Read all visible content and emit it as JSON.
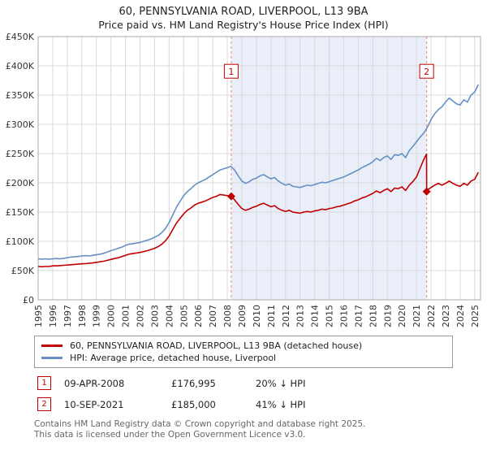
{
  "title": "60, PENNSYLVANIA ROAD, LIVERPOOL, L13 9BA",
  "subtitle": "Price paid vs. HM Land Registry's House Price Index (HPI)",
  "chart_data": {
    "type": "line",
    "x_range": [
      1995,
      2025.4
    ],
    "y_range": [
      0,
      450000
    ],
    "y_ticks": [
      0,
      50000,
      100000,
      150000,
      200000,
      250000,
      300000,
      350000,
      400000,
      450000
    ],
    "y_tick_labels": [
      "£0",
      "£50K",
      "£100K",
      "£150K",
      "£200K",
      "£250K",
      "£300K",
      "£350K",
      "£400K",
      "£450K"
    ],
    "x_ticks": [
      1995,
      1996,
      1997,
      1998,
      1999,
      2000,
      2001,
      2002,
      2003,
      2004,
      2005,
      2006,
      2007,
      2008,
      2009,
      2010,
      2011,
      2012,
      2013,
      2014,
      2015,
      2016,
      2017,
      2018,
      2019,
      2020,
      2021,
      2022,
      2023,
      2024,
      2025
    ],
    "grid": true,
    "grid_color": "#d9d9d9",
    "border_color": "#aaaaaa",
    "shaded_region": {
      "from": 2008.27,
      "to": 2021.69,
      "color": "#e9eef8"
    },
    "marker_line_color": "#e08a8a",
    "marker_label_y": 390000,
    "series": [
      {
        "name": "60, PENNSYLVANIA ROAD, LIVERPOOL, L13 9BA (detached house)",
        "color": "#c00000",
        "points": [
          [
            1995,
            57000
          ],
          [
            1995.25,
            56500
          ],
          [
            1995.5,
            57000
          ],
          [
            1995.75,
            57000
          ],
          [
            1996,
            58000
          ],
          [
            1996.25,
            58000
          ],
          [
            1996.5,
            58500
          ],
          [
            1996.75,
            59000
          ],
          [
            1997,
            59500
          ],
          [
            1997.25,
            60000
          ],
          [
            1997.5,
            60500
          ],
          [
            1997.75,
            61000
          ],
          [
            1998,
            61500
          ],
          [
            1998.25,
            62000
          ],
          [
            1998.5,
            62500
          ],
          [
            1998.75,
            63000
          ],
          [
            1999,
            64000
          ],
          [
            1999.25,
            65000
          ],
          [
            1999.5,
            66000
          ],
          [
            1999.75,
            67500
          ],
          [
            2000,
            69000
          ],
          [
            2000.25,
            70500
          ],
          [
            2000.5,
            72000
          ],
          [
            2000.75,
            74000
          ],
          [
            2001,
            76000
          ],
          [
            2001.25,
            78000
          ],
          [
            2001.5,
            79000
          ],
          [
            2001.75,
            80000
          ],
          [
            2002,
            81000
          ],
          [
            2002.25,
            82500
          ],
          [
            2002.5,
            84000
          ],
          [
            2002.75,
            86000
          ],
          [
            2003,
            88000
          ],
          [
            2003.25,
            91000
          ],
          [
            2003.5,
            95000
          ],
          [
            2003.75,
            101000
          ],
          [
            2004,
            109000
          ],
          [
            2004.25,
            120000
          ],
          [
            2004.5,
            131000
          ],
          [
            2004.75,
            139000
          ],
          [
            2005,
            147000
          ],
          [
            2005.25,
            153000
          ],
          [
            2005.5,
            157000
          ],
          [
            2005.75,
            162000
          ],
          [
            2006,
            165000
          ],
          [
            2006.25,
            167000
          ],
          [
            2006.5,
            169000
          ],
          [
            2006.75,
            172000
          ],
          [
            2007,
            175000
          ],
          [
            2007.25,
            177000
          ],
          [
            2007.5,
            180000
          ],
          [
            2007.75,
            179000
          ],
          [
            2008,
            178000
          ],
          [
            2008.27,
            176995
          ],
          [
            2008.5,
            171000
          ],
          [
            2008.75,
            163000
          ],
          [
            2009,
            156000
          ],
          [
            2009.25,
            153000
          ],
          [
            2009.5,
            155000
          ],
          [
            2009.75,
            158000
          ],
          [
            2010,
            160000
          ],
          [
            2010.25,
            163000
          ],
          [
            2010.5,
            165000
          ],
          [
            2010.75,
            162000
          ],
          [
            2011,
            159000
          ],
          [
            2011.25,
            161000
          ],
          [
            2011.5,
            156000
          ],
          [
            2011.75,
            153000
          ],
          [
            2012,
            151000
          ],
          [
            2012.25,
            153000
          ],
          [
            2012.5,
            150000
          ],
          [
            2012.75,
            149000
          ],
          [
            2013,
            148000
          ],
          [
            2013.25,
            150000
          ],
          [
            2013.5,
            151000
          ],
          [
            2013.75,
            150000
          ],
          [
            2014,
            152000
          ],
          [
            2014.25,
            153000
          ],
          [
            2014.5,
            155000
          ],
          [
            2014.75,
            154000
          ],
          [
            2015,
            156000
          ],
          [
            2015.25,
            157000
          ],
          [
            2015.5,
            159000
          ],
          [
            2015.75,
            160000
          ],
          [
            2016,
            162000
          ],
          [
            2016.25,
            164000
          ],
          [
            2016.5,
            166000
          ],
          [
            2016.75,
            169000
          ],
          [
            2017,
            171000
          ],
          [
            2017.25,
            174000
          ],
          [
            2017.5,
            176000
          ],
          [
            2017.75,
            179000
          ],
          [
            2018,
            182000
          ],
          [
            2018.25,
            186000
          ],
          [
            2018.5,
            183000
          ],
          [
            2018.75,
            187000
          ],
          [
            2019,
            190000
          ],
          [
            2019.25,
            185000
          ],
          [
            2019.5,
            191000
          ],
          [
            2019.75,
            190000
          ],
          [
            2020,
            193000
          ],
          [
            2020.25,
            187000
          ],
          [
            2020.5,
            196000
          ],
          [
            2020.75,
            202000
          ],
          [
            2021,
            210000
          ],
          [
            2021.25,
            225000
          ],
          [
            2021.5,
            240000
          ],
          [
            2021.69,
            249000
          ],
          [
            2021.7,
            185000
          ],
          [
            2021.75,
            188000
          ],
          [
            2022,
            192000
          ],
          [
            2022.25,
            196000
          ],
          [
            2022.5,
            199000
          ],
          [
            2022.75,
            196000
          ],
          [
            2023,
            199000
          ],
          [
            2023.25,
            203000
          ],
          [
            2023.5,
            199000
          ],
          [
            2023.75,
            196000
          ],
          [
            2024,
            194000
          ],
          [
            2024.25,
            199000
          ],
          [
            2024.5,
            196000
          ],
          [
            2024.75,
            203000
          ],
          [
            2025,
            206000
          ],
          [
            2025.25,
            218000
          ]
        ]
      },
      {
        "name": "HPI: Average price, detached house, Liverpool",
        "color": "#6690c4",
        "points": [
          [
            1995,
            70000
          ],
          [
            1995.25,
            69500
          ],
          [
            1995.5,
            70000
          ],
          [
            1995.75,
            69500
          ],
          [
            1996,
            70000
          ],
          [
            1996.25,
            70500
          ],
          [
            1996.5,
            70000
          ],
          [
            1996.75,
            71000
          ],
          [
            1997,
            72000
          ],
          [
            1997.25,
            73000
          ],
          [
            1997.5,
            73500
          ],
          [
            1997.75,
            74000
          ],
          [
            1998,
            75000
          ],
          [
            1998.25,
            75500
          ],
          [
            1998.5,
            75000
          ],
          [
            1998.75,
            76000
          ],
          [
            1999,
            77000
          ],
          [
            1999.25,
            78000
          ],
          [
            1999.5,
            79500
          ],
          [
            1999.75,
            81500
          ],
          [
            2000,
            84000
          ],
          [
            2000.25,
            86000
          ],
          [
            2000.5,
            88000
          ],
          [
            2000.75,
            90000
          ],
          [
            2001,
            93000
          ],
          [
            2001.25,
            95000
          ],
          [
            2001.5,
            96000
          ],
          [
            2001.75,
            97000
          ],
          [
            2002,
            98000
          ],
          [
            2002.25,
            100000
          ],
          [
            2002.5,
            102000
          ],
          [
            2002.75,
            104000
          ],
          [
            2003,
            107000
          ],
          [
            2003.25,
            110000
          ],
          [
            2003.5,
            115000
          ],
          [
            2003.75,
            122000
          ],
          [
            2004,
            132000
          ],
          [
            2004.25,
            145000
          ],
          [
            2004.5,
            158000
          ],
          [
            2004.75,
            168000
          ],
          [
            2005,
            178000
          ],
          [
            2005.25,
            185000
          ],
          [
            2005.5,
            190000
          ],
          [
            2005.75,
            196000
          ],
          [
            2006,
            200000
          ],
          [
            2006.25,
            203000
          ],
          [
            2006.5,
            206000
          ],
          [
            2006.75,
            210000
          ],
          [
            2007,
            214000
          ],
          [
            2007.25,
            218000
          ],
          [
            2007.5,
            222000
          ],
          [
            2007.75,
            224000
          ],
          [
            2008,
            226000
          ],
          [
            2008.25,
            228000
          ],
          [
            2008.5,
            222000
          ],
          [
            2008.75,
            212000
          ],
          [
            2009,
            203000
          ],
          [
            2009.25,
            199000
          ],
          [
            2009.5,
            202000
          ],
          [
            2009.75,
            206000
          ],
          [
            2010,
            208000
          ],
          [
            2010.25,
            212000
          ],
          [
            2010.5,
            214000
          ],
          [
            2010.75,
            210000
          ],
          [
            2011,
            207000
          ],
          [
            2011.25,
            209000
          ],
          [
            2011.5,
            203000
          ],
          [
            2011.75,
            199000
          ],
          [
            2012,
            196000
          ],
          [
            2012.25,
            198000
          ],
          [
            2012.5,
            194000
          ],
          [
            2012.75,
            193000
          ],
          [
            2013,
            192000
          ],
          [
            2013.25,
            194000
          ],
          [
            2013.5,
            196000
          ],
          [
            2013.75,
            195000
          ],
          [
            2014,
            197000
          ],
          [
            2014.25,
            199000
          ],
          [
            2014.5,
            201000
          ],
          [
            2014.75,
            200000
          ],
          [
            2015,
            202000
          ],
          [
            2015.25,
            204000
          ],
          [
            2015.5,
            206000
          ],
          [
            2015.75,
            208000
          ],
          [
            2016,
            210000
          ],
          [
            2016.25,
            213000
          ],
          [
            2016.5,
            216000
          ],
          [
            2016.75,
            219000
          ],
          [
            2017,
            222000
          ],
          [
            2017.25,
            226000
          ],
          [
            2017.5,
            229000
          ],
          [
            2017.75,
            232000
          ],
          [
            2018,
            236000
          ],
          [
            2018.25,
            242000
          ],
          [
            2018.5,
            238000
          ],
          [
            2018.75,
            243000
          ],
          [
            2019,
            246000
          ],
          [
            2019.25,
            240000
          ],
          [
            2019.5,
            248000
          ],
          [
            2019.75,
            247000
          ],
          [
            2020,
            250000
          ],
          [
            2020.25,
            243000
          ],
          [
            2020.5,
            255000
          ],
          [
            2020.75,
            262000
          ],
          [
            2021,
            270000
          ],
          [
            2021.25,
            278000
          ],
          [
            2021.5,
            285000
          ],
          [
            2021.75,
            295000
          ],
          [
            2022,
            308000
          ],
          [
            2022.25,
            318000
          ],
          [
            2022.5,
            325000
          ],
          [
            2022.75,
            330000
          ],
          [
            2023,
            338000
          ],
          [
            2023.25,
            345000
          ],
          [
            2023.5,
            340000
          ],
          [
            2023.75,
            335000
          ],
          [
            2024,
            333000
          ],
          [
            2024.25,
            342000
          ],
          [
            2024.5,
            338000
          ],
          [
            2024.75,
            350000
          ],
          [
            2025,
            355000
          ],
          [
            2025.25,
            368000
          ]
        ]
      }
    ],
    "markers": [
      {
        "label": "1",
        "x": 2008.27,
        "y": 176995
      },
      {
        "label": "2",
        "x": 2021.7,
        "y": 185000
      }
    ]
  },
  "annotations": [
    {
      "num": "1",
      "date": "09-APR-2008",
      "price": "£176,995",
      "hpi": "20% ↓ HPI"
    },
    {
      "num": "2",
      "date": "10-SEP-2021",
      "price": "£185,000",
      "hpi": "41% ↓ HPI"
    }
  ],
  "footer": {
    "line1": "Contains HM Land Registry data © Crown copyright and database right 2025.",
    "line2": "This data is licensed under the Open Government Licence v3.0."
  }
}
